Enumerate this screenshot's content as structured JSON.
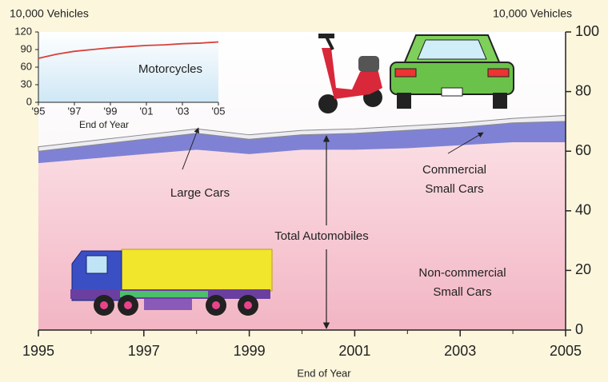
{
  "chart_data": [
    {
      "type": "area",
      "y_label": "10,000 Vehicles",
      "x_label": "End of Year",
      "annotation": "Total Automobiles",
      "x": [
        1995,
        1996,
        1997,
        1998,
        1999,
        2000,
        2001,
        2002,
        2003,
        2004,
        2005
      ],
      "series": [
        {
          "name": [
            "Non-commercial",
            "Small Cars"
          ],
          "color": "#f3bccb",
          "values": [
            56,
            57.5,
            59,
            60.5,
            59,
            60.5,
            60.5,
            61,
            62,
            63,
            63
          ]
        },
        {
          "name": [
            "Commercial",
            "Small Cars"
          ],
          "color": "#7f82d4",
          "values": [
            4,
            4.5,
            5,
            5.5,
            5,
            5,
            5.5,
            6,
            6,
            6.5,
            7
          ]
        },
        {
          "name": [
            "Large Cars"
          ],
          "color": "#ececf2",
          "values": [
            1.5,
            1.5,
            1.5,
            1.5,
            1.5,
            1.5,
            1.5,
            1.5,
            1.5,
            1.5,
            2
          ]
        }
      ],
      "xlim": [
        1995,
        2005
      ],
      "xticks": [
        1995,
        1997,
        1999,
        2001,
        2003,
        2005
      ],
      "ylim": [
        0,
        100
      ],
      "yticks": [
        0,
        20,
        40,
        60,
        80,
        100
      ]
    },
    {
      "type": "line",
      "y_label": "10,000 Vehicles",
      "x_label": "End of Year",
      "annotation": "Motorcycles",
      "x": [
        1995,
        1996,
        1997,
        1998,
        1999,
        2000,
        2001,
        2002,
        2003,
        2004,
        2005
      ],
      "series": [
        {
          "name": "Motorcycles",
          "color": "#d9403a",
          "values": [
            75,
            82,
            87,
            90,
            93,
            95,
            97,
            98,
            100,
            101,
            103
          ]
        }
      ],
      "xlim": [
        1995,
        2005
      ],
      "xticks": [
        {
          "value": 1995,
          "label": "'95"
        },
        {
          "value": 1997,
          "label": "'97"
        },
        {
          "value": 1999,
          "label": "'99"
        },
        {
          "value": 2001,
          "label": "'01"
        },
        {
          "value": 2003,
          "label": "'03"
        },
        {
          "value": 2005,
          "label": "'05"
        }
      ],
      "ylim": [
        0,
        120
      ],
      "yticks": [
        0,
        30,
        60,
        90,
        120
      ]
    }
  ]
}
